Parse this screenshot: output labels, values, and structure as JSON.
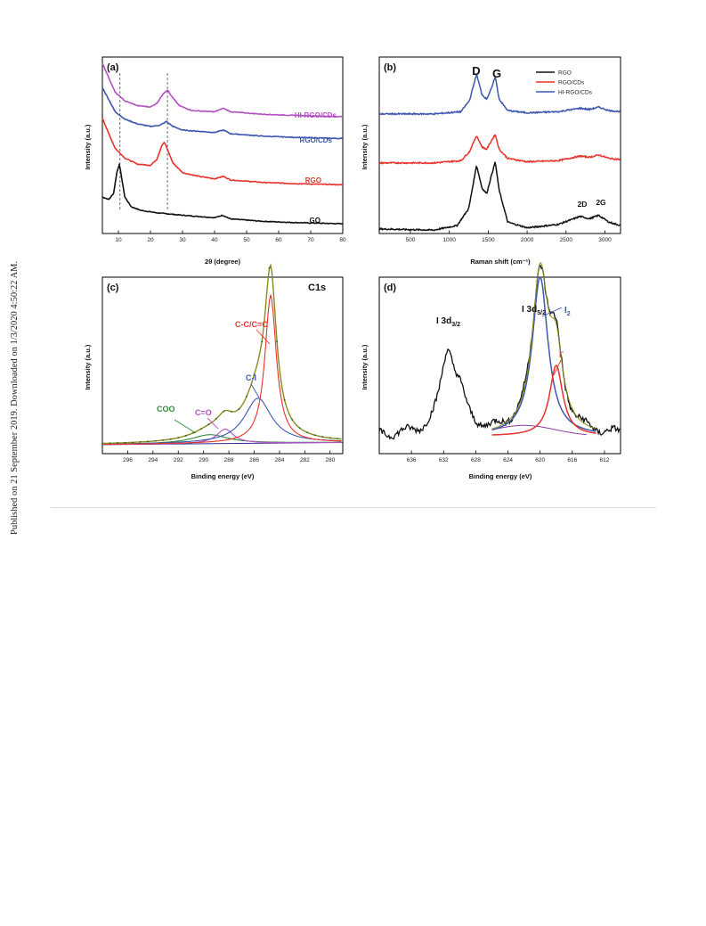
{
  "side_note": "Published on 21 September 2019. Downloaded on 1/3/2020 4:50:22 AM.",
  "colors": {
    "black": "#111111",
    "red": "#e8322b",
    "blue": "#3d57b0",
    "purple": "#b351c2",
    "green": "#2e8b36",
    "olive": "#8a8a1e",
    "navy": "#2b2b8c"
  },
  "chart_data": [
    {
      "panel": "(a)",
      "type": "line",
      "xlabel": "2θ (degree)",
      "ylabel": "Intensity (a.u.)",
      "xlim": [
        5,
        80
      ],
      "xticks": [
        "10",
        "20",
        "30",
        "40",
        "50",
        "60",
        "70",
        "80"
      ],
      "dashed_lines_x": [
        10.5,
        25.3
      ],
      "series": [
        {
          "name": "GO",
          "color": "#111111",
          "points": [
            [
              5,
              0.3
            ],
            [
              7,
              0.28
            ],
            [
              8.5,
              0.33
            ],
            [
              9.5,
              0.5
            ],
            [
              10.3,
              0.57
            ],
            [
              11,
              0.46
            ],
            [
              12,
              0.3
            ],
            [
              14,
              0.22
            ],
            [
              17,
              0.19
            ],
            [
              22,
              0.17
            ],
            [
              30,
              0.15
            ],
            [
              40,
              0.13
            ],
            [
              42.5,
              0.15
            ],
            [
              45,
              0.12
            ],
            [
              55,
              0.1
            ],
            [
              65,
              0.09
            ],
            [
              80,
              0.08
            ]
          ]
        },
        {
          "name": "RGO",
          "color": "#e8322b",
          "points": [
            [
              5,
              0.95
            ],
            [
              7,
              0.82
            ],
            [
              9,
              0.7
            ],
            [
              12,
              0.62
            ],
            [
              16,
              0.57
            ],
            [
              20,
              0.56
            ],
            [
              22,
              0.61
            ],
            [
              23.5,
              0.72
            ],
            [
              24.3,
              0.75
            ],
            [
              25,
              0.71
            ],
            [
              27,
              0.58
            ],
            [
              30,
              0.5
            ],
            [
              35,
              0.47
            ],
            [
              40,
              0.45
            ],
            [
              42.8,
              0.47
            ],
            [
              45,
              0.44
            ],
            [
              55,
              0.42
            ],
            [
              65,
              0.41
            ],
            [
              80,
              0.4
            ]
          ]
        },
        {
          "name": "RGO/CDs",
          "color": "#3d57b0",
          "points": [
            [
              5,
              1.2
            ],
            [
              7,
              1.1
            ],
            [
              9,
              1.0
            ],
            [
              12,
              0.94
            ],
            [
              16,
              0.9
            ],
            [
              20,
              0.88
            ],
            [
              23,
              0.89
            ],
            [
              25,
              0.92
            ],
            [
              27,
              0.88
            ],
            [
              30,
              0.85
            ],
            [
              40,
              0.83
            ],
            [
              42.8,
              0.85
            ],
            [
              45,
              0.82
            ],
            [
              55,
              0.8
            ],
            [
              65,
              0.79
            ],
            [
              80,
              0.78
            ]
          ]
        },
        {
          "name": "HI-RGO/CDs",
          "color": "#b351c2",
          "points": [
            [
              5,
              1.4
            ],
            [
              7,
              1.28
            ],
            [
              9,
              1.16
            ],
            [
              12,
              1.09
            ],
            [
              16,
              1.05
            ],
            [
              20,
              1.04
            ],
            [
              22,
              1.07
            ],
            [
              24,
              1.15
            ],
            [
              25.3,
              1.18
            ],
            [
              26.5,
              1.13
            ],
            [
              29,
              1.05
            ],
            [
              33,
              1.01
            ],
            [
              40,
              1.0
            ],
            [
              42.8,
              1.03
            ],
            [
              45,
              1.0
            ],
            [
              55,
              0.98
            ],
            [
              65,
              0.97
            ],
            [
              80,
              0.96
            ]
          ]
        }
      ],
      "labels": [
        {
          "text": "HI-RGO/CDs",
          "color": "#b351c2"
        },
        {
          "text": "RGO/CDs",
          "color": "#3d57b0"
        },
        {
          "text": "RGO",
          "color": "#e8322b"
        },
        {
          "text": "GO",
          "color": "#111111"
        }
      ]
    },
    {
      "panel": "(b)",
      "type": "line",
      "xlabel": "Raman shift (cm⁻¹)",
      "ylabel": "Intensity (a.u.)",
      "xlim": [
        100,
        3200
      ],
      "xticks": [
        "500",
        "1000",
        "1500",
        "2000",
        "2500",
        "3000"
      ],
      "legend": [
        "RGO",
        "RGO/CDs",
        "HI-RGO/CDs"
      ],
      "peak_labels": [
        "D",
        "G",
        "2D",
        "2G"
      ],
      "series": [
        {
          "name": "RGO",
          "color": "#111111",
          "points": [
            [
              100,
              0.04
            ],
            [
              800,
              0.03
            ],
            [
              1100,
              0.07
            ],
            [
              1250,
              0.22
            ],
            [
              1350,
              0.6
            ],
            [
              1420,
              0.4
            ],
            [
              1480,
              0.35
            ],
            [
              1545,
              0.52
            ],
            [
              1590,
              0.63
            ],
            [
              1640,
              0.38
            ],
            [
              1750,
              0.1
            ],
            [
              2000,
              0.05
            ],
            [
              2400,
              0.08
            ],
            [
              2680,
              0.15
            ],
            [
              2800,
              0.13
            ],
            [
              2920,
              0.16
            ],
            [
              3050,
              0.1
            ],
            [
              3200,
              0.07
            ]
          ]
        },
        {
          "name": "RGO/CDs",
          "color": "#e8322b",
          "points": [
            [
              100,
              0.62
            ],
            [
              800,
              0.62
            ],
            [
              1150,
              0.64
            ],
            [
              1260,
              0.72
            ],
            [
              1350,
              0.86
            ],
            [
              1420,
              0.76
            ],
            [
              1480,
              0.74
            ],
            [
              1545,
              0.82
            ],
            [
              1590,
              0.87
            ],
            [
              1640,
              0.74
            ],
            [
              1750,
              0.66
            ],
            [
              2000,
              0.63
            ],
            [
              2400,
              0.64
            ],
            [
              2680,
              0.68
            ],
            [
              2800,
              0.67
            ],
            [
              2920,
              0.69
            ],
            [
              3050,
              0.66
            ],
            [
              3200,
              0.65
            ]
          ]
        },
        {
          "name": "HI-RGO/CDs",
          "color": "#3d57b0",
          "points": [
            [
              100,
              1.05
            ],
            [
              800,
              1.05
            ],
            [
              1150,
              1.07
            ],
            [
              1260,
              1.17
            ],
            [
              1350,
              1.4
            ],
            [
              1420,
              1.22
            ],
            [
              1480,
              1.18
            ],
            [
              1545,
              1.28
            ],
            [
              1590,
              1.38
            ],
            [
              1640,
              1.18
            ],
            [
              1750,
              1.08
            ],
            [
              2000,
              1.06
            ],
            [
              2400,
              1.07
            ],
            [
              2680,
              1.1
            ],
            [
              2800,
              1.09
            ],
            [
              2920,
              1.11
            ],
            [
              3050,
              1.08
            ],
            [
              3200,
              1.07
            ]
          ]
        }
      ]
    },
    {
      "panel": "(c)",
      "type": "line",
      "title": "C1s",
      "xlabel": "Binding energy (eV)",
      "ylabel": "Intensity (a.u.)",
      "xlim": [
        298,
        279
      ],
      "xticks": [
        "296",
        "294",
        "292",
        "290",
        "288",
        "286",
        "284",
        "282",
        "280"
      ],
      "annotations": [
        {
          "text": "C-C/C=C",
          "color": "#e8322b"
        },
        {
          "text": "C-I",
          "color": "#3d57b0"
        },
        {
          "text": "C=O",
          "color": "#b351c2"
        },
        {
          "text": "COO",
          "color": "#2e8b36"
        }
      ],
      "series": [
        {
          "name": "C-C/C=C",
          "color": "#e8322b",
          "center": 284.7,
          "fwhm": 1.1,
          "height": 0.82
        },
        {
          "name": "C-I",
          "color": "#3d57b0",
          "center": 285.7,
          "fwhm": 2.6,
          "height": 0.25
        },
        {
          "name": "C=O",
          "color": "#b351c2",
          "center": 288.3,
          "fwhm": 1.6,
          "height": 0.08
        },
        {
          "name": "COO",
          "color": "#2e8b36",
          "center": 289.5,
          "fwhm": 3.5,
          "height": 0.05
        }
      ]
    },
    {
      "panel": "(d)",
      "type": "line",
      "xlabel": "Binding energy (eV)",
      "ylabel": "Intensity (a.u.)",
      "xlim": [
        640,
        610
      ],
      "xticks": [
        "636",
        "632",
        "628",
        "624",
        "620",
        "616",
        "612"
      ],
      "annotations": [
        {
          "text": "I 3d3/2",
          "color": "#111111"
        },
        {
          "text": "I 3d5/2",
          "color": "#111111"
        },
        {
          "text": "I2",
          "color": "#3d57b0"
        },
        {
          "text": "I⁻",
          "color": "#e8322b"
        }
      ],
      "series": [
        {
          "name": "I2",
          "color": "#3d57b0",
          "center": 620.0,
          "fwhm": 2.4,
          "height": 0.9
        },
        {
          "name": "I⁻",
          "color": "#e8322b",
          "center": 618.0,
          "fwhm": 2.0,
          "height": 0.4
        }
      ]
    }
  ]
}
